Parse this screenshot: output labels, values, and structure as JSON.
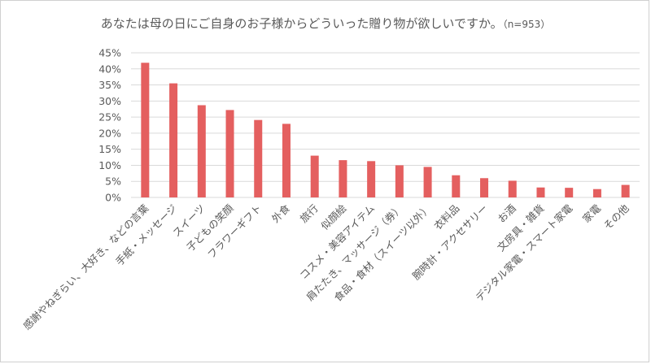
{
  "chart_data": {
    "type": "bar",
    "title": "あなたは母の日にご自身のお子様からどういった贈り物が欲しいですか。",
    "subtitle": "（n=953）",
    "categories": [
      "感謝やねぎらい、大好き、などの言葉",
      "手紙・メッセージ",
      "スイーツ",
      "子どもの笑顔",
      "フラワーギフト",
      "外食",
      "旅行",
      "似顔絵",
      "コスメ・美容アイテム",
      "肩たたき、マッサージ（券）",
      "食品・食材（スイーツ以外）",
      "衣料品",
      "腕時計・アクセサリー",
      "お酒",
      "文房具・雑貨",
      "デジタル家電・スマート家電",
      "家電",
      "その他"
    ],
    "values": [
      41.9,
      35.5,
      28.7,
      27.2,
      24.1,
      22.9,
      13.0,
      11.6,
      11.3,
      10.0,
      9.5,
      6.9,
      6.0,
      5.2,
      3.1,
      3.0,
      2.6,
      3.9
    ],
    "unit": "%",
    "ylim": [
      0,
      45
    ],
    "yticks": [
      "0%",
      "5%",
      "10%",
      "15%",
      "20%",
      "25%",
      "30%",
      "35%",
      "40%",
      "45%"
    ],
    "grid": true,
    "legend": "none",
    "bar_color": "#e45f5f",
    "xlabel": "",
    "ylabel": ""
  }
}
